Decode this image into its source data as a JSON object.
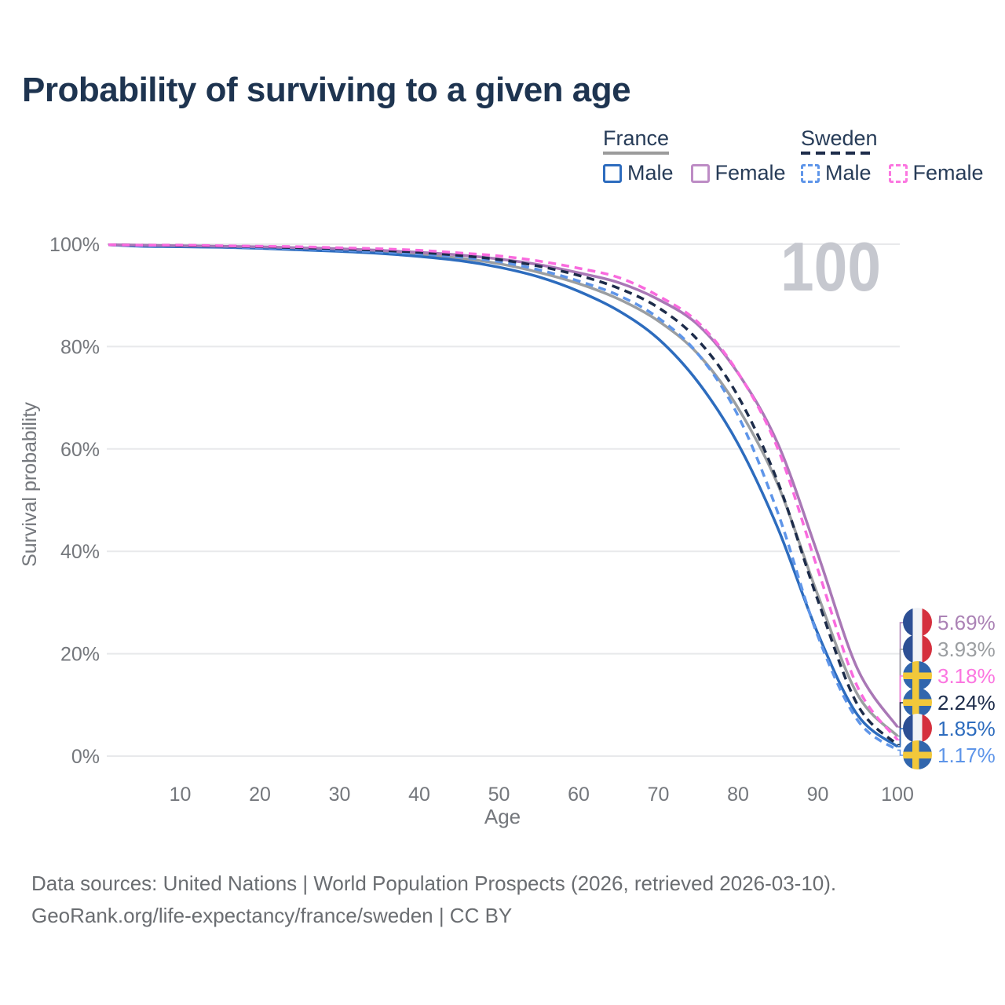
{
  "title": "Probability of surviving to a given age",
  "watermark": "100",
  "legend": {
    "france": {
      "label": "France",
      "male": "Male",
      "female": "Female"
    },
    "sweden": {
      "label": "Sweden",
      "male": "Male",
      "female": "Female"
    }
  },
  "axes": {
    "y_title": "Survival probability",
    "x_title": "Age",
    "y_ticks": [
      "100%",
      "80%",
      "60%",
      "40%",
      "20%",
      "0%"
    ],
    "y_tick_values": [
      100,
      80,
      60,
      40,
      20,
      0
    ],
    "x_ticks": [
      "10",
      "20",
      "30",
      "40",
      "50",
      "60",
      "70",
      "80",
      "90",
      "100"
    ],
    "x_tick_values": [
      10,
      20,
      30,
      40,
      50,
      60,
      70,
      80,
      90,
      100
    ]
  },
  "chart_data": {
    "type": "line",
    "title": "Probability of surviving to a given age",
    "xlabel": "Age",
    "ylabel": "Survival probability",
    "xlim": [
      1,
      100
    ],
    "ylim": [
      0,
      100
    ],
    "grid": "horizontal",
    "legend_position": "top-right",
    "x": [
      1,
      5,
      10,
      15,
      20,
      25,
      30,
      35,
      40,
      45,
      50,
      55,
      60,
      65,
      70,
      75,
      80,
      85,
      90,
      95,
      100
    ],
    "series": [
      {
        "name": "France Both sexes",
        "country": "France",
        "style": "solid",
        "color": "#9b9ea1",
        "end_label": "3.93%",
        "values": [
          99.9,
          99.7,
          99.6,
          99.5,
          99.3,
          99.1,
          98.8,
          98.5,
          98.0,
          97.3,
          96.2,
          94.5,
          92.3,
          89.3,
          85.0,
          78.5,
          68.0,
          53.0,
          31.5,
          12.0,
          3.93
        ]
      },
      {
        "name": "France Male",
        "country": "France",
        "style": "solid",
        "color": "#2d6cbe",
        "end_label": "1.85%",
        "values": [
          99.9,
          99.6,
          99.5,
          99.4,
          99.2,
          98.9,
          98.6,
          98.2,
          97.6,
          96.8,
          95.5,
          93.6,
          90.8,
          87.0,
          81.5,
          73.0,
          61.0,
          44.5,
          24.0,
          8.0,
          1.85
        ]
      },
      {
        "name": "France Female",
        "country": "France",
        "style": "solid",
        "color": "#a978b6",
        "end_label": "5.69%",
        "values": [
          99.9,
          99.8,
          99.7,
          99.6,
          99.5,
          99.3,
          99.1,
          98.8,
          98.4,
          97.9,
          97.1,
          96.0,
          94.4,
          92.5,
          89.2,
          84.2,
          74.8,
          61.0,
          39.5,
          17.0,
          5.69
        ]
      },
      {
        "name": "Sweden Male",
        "country": "Sweden",
        "style": "dashed",
        "color": "#5e95e9",
        "end_label": "1.17%",
        "values": [
          99.9,
          99.7,
          99.6,
          99.5,
          99.3,
          99.1,
          98.8,
          98.5,
          98.1,
          97.5,
          96.6,
          95.0,
          92.8,
          90.0,
          85.6,
          78.5,
          66.5,
          47.5,
          23.5,
          7.0,
          1.17
        ]
      },
      {
        "name": "Sweden Both sexes",
        "country": "Sweden",
        "style": "dashed",
        "color": "#1d2c4a",
        "end_label": "2.24%",
        "values": [
          99.9,
          99.8,
          99.7,
          99.6,
          99.5,
          99.3,
          99.1,
          98.8,
          98.4,
          97.8,
          97.0,
          95.7,
          93.9,
          91.4,
          87.6,
          81.2,
          70.3,
          53.5,
          30.5,
          10.0,
          2.24
        ]
      },
      {
        "name": "Sweden Female",
        "country": "Sweden",
        "style": "dashed",
        "color": "#f96ade",
        "end_label": "3.18%",
        "values": [
          99.9,
          99.8,
          99.8,
          99.7,
          99.6,
          99.5,
          99.3,
          99.1,
          98.8,
          98.3,
          97.7,
          96.7,
          95.3,
          93.5,
          89.9,
          84.7,
          74.9,
          60.0,
          36.5,
          13.5,
          3.18
        ]
      }
    ]
  },
  "end_labels": [
    {
      "value": "5.69%",
      "flag": "france",
      "series": "France Female",
      "color": "#ab82b5"
    },
    {
      "value": "3.93%",
      "flag": "france",
      "series": "France Both sexes",
      "color": "#9b9ea1"
    },
    {
      "value": "3.18%",
      "flag": "sweden",
      "series": "Sweden Female",
      "color": "#fb76e0"
    },
    {
      "value": "2.24%",
      "flag": "sweden",
      "series": "Sweden Both sexes",
      "color": "#1d2c4a"
    },
    {
      "value": "1.85%",
      "flag": "france",
      "series": "France Male",
      "color": "#2d6cbe"
    },
    {
      "value": "1.17%",
      "flag": "sweden",
      "series": "Sweden Male",
      "color": "#5e95e9"
    }
  ],
  "footer": {
    "line1": "Data sources: United Nations | World Population Prospects (2026, retrieved 2026-03-10).",
    "line2": "GeoRank.org/life-expectancy/france/sweden | CC BY"
  }
}
